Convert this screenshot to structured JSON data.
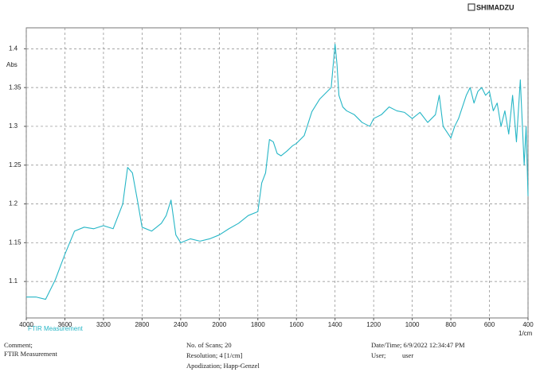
{
  "brand": "SHIMADZU",
  "chart_data": {
    "type": "line",
    "y_label": "Abs",
    "x_label": "1/cm",
    "subtitle": "FTIR Measurement",
    "x": [
      4000,
      3900,
      3800,
      3700,
      3600,
      3500,
      3400,
      3300,
      3200,
      3100,
      3000,
      2950,
      2900,
      2850,
      2800,
      2700,
      2600,
      2550,
      2500,
      2450,
      2400,
      2300,
      2200,
      2100,
      2000,
      1950,
      1900,
      1850,
      1800,
      1780,
      1760,
      1740,
      1720,
      1700,
      1680,
      1650,
      1620,
      1600,
      1560,
      1520,
      1480,
      1440,
      1420,
      1400,
      1390,
      1380,
      1360,
      1340,
      1300,
      1260,
      1220,
      1200,
      1160,
      1120,
      1080,
      1040,
      1000,
      960,
      920,
      880,
      860,
      840,
      800,
      780,
      760,
      720,
      700,
      680,
      660,
      640,
      620,
      600,
      580,
      560,
      540,
      520,
      500,
      480,
      460,
      440,
      420,
      410,
      400
    ],
    "series": [
      {
        "name": "FTIR Measurement",
        "color": "#26b6c6",
        "values": [
          1.08,
          1.08,
          1.077,
          1.102,
          1.135,
          1.165,
          1.17,
          1.168,
          1.172,
          1.168,
          1.2,
          1.247,
          1.24,
          1.206,
          1.17,
          1.165,
          1.175,
          1.185,
          1.205,
          1.16,
          1.15,
          1.155,
          1.152,
          1.155,
          1.16,
          1.168,
          1.175,
          1.185,
          1.19,
          1.227,
          1.24,
          1.283,
          1.28,
          1.265,
          1.262,
          1.268,
          1.275,
          1.278,
          1.288,
          1.319,
          1.335,
          1.345,
          1.35,
          1.406,
          1.38,
          1.34,
          1.325,
          1.32,
          1.315,
          1.305,
          1.3,
          1.31,
          1.315,
          1.325,
          1.32,
          1.318,
          1.31,
          1.318,
          1.305,
          1.315,
          1.34,
          1.3,
          1.285,
          1.3,
          1.31,
          1.34,
          1.35,
          1.33,
          1.345,
          1.35,
          1.34,
          1.345,
          1.32,
          1.33,
          1.3,
          1.32,
          1.29,
          1.34,
          1.28,
          1.36,
          1.25,
          1.3,
          1.21
        ]
      }
    ],
    "xlim": [
      4000,
      400
    ],
    "ylim": [
      1.053,
      1.427
    ],
    "xticks": [
      4000,
      3600,
      3200,
      2800,
      2400,
      2000,
      1800,
      1600,
      1400,
      1200,
      1000,
      800,
      600,
      400
    ],
    "yticks": [
      1.1,
      1.15,
      1.2,
      1.25,
      1.3,
      1.35,
      1.4
    ],
    "grid": true
  },
  "footer": {
    "comment_label": "Comment;",
    "comment": "FTIR Measurement",
    "scans": "No. of Scans; 20",
    "resolution": "Resolution;   4 [1/cm]",
    "apodization": "Apodization;   Happ-Genzel",
    "datetime": "Date/Time; 6/9/2022 12:34:47 PM",
    "user_label": "User;",
    "user": "user"
  }
}
